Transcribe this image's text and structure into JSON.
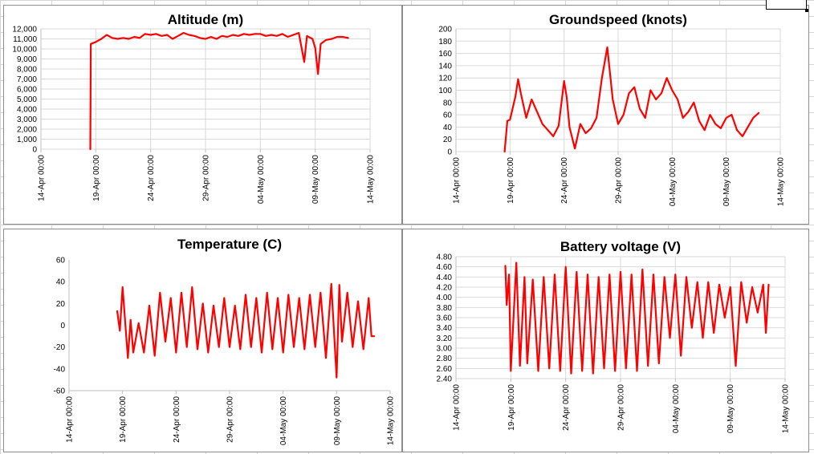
{
  "colors": {
    "series": "#ff0000",
    "grid": "#d9d9d9",
    "axis": "#bfbfbf",
    "background_grid": "#d4d4d4"
  },
  "chart_data": [
    {
      "type": "line",
      "title": "Altitude (m)",
      "xlabel": "",
      "ylabel": "",
      "grid": true,
      "ylim": [
        0,
        12000
      ],
      "yticks": [
        "0",
        "1,000",
        "2,000",
        "3,000",
        "4,000",
        "5,000",
        "6,000",
        "7,000",
        "8,000",
        "9,000",
        "10,000",
        "11,000",
        "12,000"
      ],
      "xlim": [
        "2023-04-14",
        "2023-05-14"
      ],
      "xticks": [
        "14-Apr 00:00",
        "19-Apr 00:00",
        "24-Apr 00:00",
        "29-Apr 00:00",
        "04-May 00:00",
        "09-May 00:00",
        "14-May 00:00"
      ],
      "series": [
        {
          "x": [
            "2023-04-18 12:00",
            "2023-04-18 13:00",
            "2023-04-19 00:00",
            "2023-04-19 12:00",
            "2023-04-20 00:00",
            "2023-04-20 12:00",
            "2023-04-21 00:00",
            "2023-04-21 12:00",
            "2023-04-22 00:00",
            "2023-04-22 12:00",
            "2023-04-23 00:00",
            "2023-04-23 12:00",
            "2023-04-24 00:00",
            "2023-04-24 12:00",
            "2023-04-25 00:00",
            "2023-04-25 12:00",
            "2023-04-26 00:00",
            "2023-04-26 12:00",
            "2023-04-27 00:00",
            "2023-04-27 12:00",
            "2023-04-28 00:00",
            "2023-04-28 12:00",
            "2023-04-29 00:00",
            "2023-04-29 12:00",
            "2023-04-30 00:00",
            "2023-04-30 12:00",
            "2023-05-01 00:00",
            "2023-05-01 12:00",
            "2023-05-02 00:00",
            "2023-05-02 12:00",
            "2023-05-03 00:00",
            "2023-05-03 12:00",
            "2023-05-04 00:00",
            "2023-05-04 12:00",
            "2023-05-05 00:00",
            "2023-05-05 12:00",
            "2023-05-06 00:00",
            "2023-05-06 12:00",
            "2023-05-07 00:00",
            "2023-05-07 12:00",
            "2023-05-08 00:00",
            "2023-05-08 06:00",
            "2023-05-08 18:00",
            "2023-05-09 00:00",
            "2023-05-09 06:00",
            "2023-05-09 12:00",
            "2023-05-10 00:00",
            "2023-05-10 12:00",
            "2023-05-11 00:00",
            "2023-05-11 12:00",
            "2023-05-12 00:00"
          ],
          "y": [
            0,
            10500,
            10700,
            11000,
            11400,
            11100,
            11000,
            11100,
            11000,
            11200,
            11100,
            11500,
            11400,
            11500,
            11300,
            11400,
            11000,
            11300,
            11600,
            11400,
            11300,
            11100,
            11000,
            11200,
            11000,
            11300,
            11200,
            11400,
            11300,
            11500,
            11400,
            11500,
            11500,
            11300,
            11400,
            11300,
            11500,
            11200,
            11400,
            11600,
            8700,
            11300,
            11000,
            10100,
            7500,
            10500,
            10900,
            11000,
            11200,
            11200,
            11100
          ]
        }
      ]
    },
    {
      "type": "line",
      "title": "Groundspeed (knots)",
      "xlabel": "",
      "ylabel": "",
      "grid": true,
      "ylim": [
        0,
        200
      ],
      "yticks": [
        "0",
        "20",
        "40",
        "60",
        "80",
        "100",
        "120",
        "140",
        "160",
        "180",
        "200"
      ],
      "xlim": [
        "2023-04-14",
        "2023-05-14"
      ],
      "xticks": [
        "14-Apr 00:00",
        "19-Apr 00:00",
        "24-Apr 00:00",
        "29-Apr 00:00",
        "04-May 00:00",
        "09-May 00:00",
        "14-May 00:00"
      ],
      "series": [
        {
          "x": [
            "2023-04-18 12:00",
            "2023-04-18 18:00",
            "2023-04-19 00:00",
            "2023-04-19 12:00",
            "2023-04-19 18:00",
            "2023-04-20 00:00",
            "2023-04-20 12:00",
            "2023-04-21 00:00",
            "2023-04-21 12:00",
            "2023-04-22 00:00",
            "2023-04-22 12:00",
            "2023-04-23 00:00",
            "2023-04-23 12:00",
            "2023-04-24 00:00",
            "2023-04-24 06:00",
            "2023-04-24 12:00",
            "2023-04-25 00:00",
            "2023-04-25 12:00",
            "2023-04-26 00:00",
            "2023-04-26 12:00",
            "2023-04-27 00:00",
            "2023-04-27 12:00",
            "2023-04-28 00:00",
            "2023-04-28 12:00",
            "2023-04-29 00:00",
            "2023-04-29 12:00",
            "2023-04-30 00:00",
            "2023-04-30 12:00",
            "2023-05-01 00:00",
            "2023-05-01 12:00",
            "2023-05-02 00:00",
            "2023-05-02 12:00",
            "2023-05-03 00:00",
            "2023-05-03 12:00",
            "2023-05-04 00:00",
            "2023-05-04 12:00",
            "2023-05-05 00:00",
            "2023-05-05 12:00",
            "2023-05-06 00:00",
            "2023-05-06 12:00",
            "2023-05-07 00:00",
            "2023-05-07 12:00",
            "2023-05-08 00:00",
            "2023-05-08 12:00",
            "2023-05-09 00:00",
            "2023-05-09 12:00",
            "2023-05-10 00:00",
            "2023-05-10 12:00",
            "2023-05-11 00:00",
            "2023-05-11 12:00",
            "2023-05-12 00:00"
          ],
          "y": [
            0,
            50,
            52,
            90,
            118,
            95,
            55,
            85,
            65,
            45,
            35,
            25,
            42,
            115,
            88,
            40,
            5,
            45,
            30,
            38,
            55,
            120,
            170,
            85,
            45,
            60,
            95,
            105,
            70,
            55,
            100,
            85,
            95,
            120,
            100,
            85,
            55,
            65,
            80,
            50,
            35,
            60,
            45,
            38,
            55,
            60,
            35,
            25,
            40,
            55,
            63
          ]
        }
      ]
    },
    {
      "type": "line",
      "title": "Temperature (C)",
      "xlabel": "",
      "ylabel": "",
      "grid": false,
      "ylim": [
        -60,
        60
      ],
      "yticks": [
        "-60",
        "-40",
        "-20",
        "0",
        "20",
        "40",
        "60"
      ],
      "xlim": [
        "2023-04-14",
        "2023-05-14"
      ],
      "xticks": [
        "14-Apr 00:00",
        "19-Apr 00:00",
        "24-Apr 00:00",
        "29-Apr 00:00",
        "04-May 00:00",
        "09-May 00:00",
        "14-May 00:00"
      ],
      "series": [
        {
          "x": [
            "2023-04-18 12:00",
            "2023-04-18 18:00",
            "2023-04-19 00:00",
            "2023-04-19 12:00",
            "2023-04-19 18:00",
            "2023-04-20 00:00",
            "2023-04-20 12:00",
            "2023-04-21 00:00",
            "2023-04-21 12:00",
            "2023-04-22 00:00",
            "2023-04-22 12:00",
            "2023-04-23 00:00",
            "2023-04-23 12:00",
            "2023-04-24 00:00",
            "2023-04-24 12:00",
            "2023-04-25 00:00",
            "2023-04-25 12:00",
            "2023-04-26 00:00",
            "2023-04-26 12:00",
            "2023-04-27 00:00",
            "2023-04-27 12:00",
            "2023-04-28 00:00",
            "2023-04-28 12:00",
            "2023-04-29 00:00",
            "2023-04-29 12:00",
            "2023-04-30 00:00",
            "2023-04-30 12:00",
            "2023-05-01 00:00",
            "2023-05-01 12:00",
            "2023-05-02 00:00",
            "2023-05-02 12:00",
            "2023-05-03 00:00",
            "2023-05-03 12:00",
            "2023-05-04 00:00",
            "2023-05-04 12:00",
            "2023-05-05 00:00",
            "2023-05-05 12:00",
            "2023-05-06 00:00",
            "2023-05-06 12:00",
            "2023-05-07 00:00",
            "2023-05-07 12:00",
            "2023-05-08 00:00",
            "2023-05-08 12:00",
            "2023-05-09 00:00",
            "2023-05-09 06:00",
            "2023-05-09 12:00",
            "2023-05-10 00:00",
            "2023-05-10 12:00",
            "2023-05-11 00:00",
            "2023-05-11 12:00",
            "2023-05-12 00:00",
            "2023-05-12 06:00",
            "2023-05-12 12:00"
          ],
          "y": [
            13,
            -5,
            35,
            -30,
            5,
            -25,
            2,
            -25,
            18,
            -28,
            30,
            -15,
            25,
            -25,
            30,
            -20,
            35,
            -22,
            20,
            -25,
            18,
            -20,
            25,
            -20,
            18,
            -22,
            28,
            -20,
            25,
            -25,
            30,
            -22,
            25,
            -25,
            28,
            -20,
            25,
            -22,
            28,
            -20,
            30,
            -30,
            38,
            -48,
            37,
            -15,
            30,
            -20,
            22,
            -22,
            25,
            -10,
            -10
          ]
        }
      ]
    },
    {
      "type": "line",
      "title": "Battery voltage (V)",
      "xlabel": "",
      "ylabel": "",
      "grid": true,
      "ylim": [
        2.4,
        4.8
      ],
      "yticks": [
        "2.40",
        "2.60",
        "2.80",
        "3.00",
        "3.20",
        "3.40",
        "3.60",
        "3.80",
        "4.00",
        "4.20",
        "4.40",
        "4.60",
        "4.80"
      ],
      "xlim": [
        "2023-04-14",
        "2023-05-14"
      ],
      "xticks": [
        "14-Apr 00:00",
        "19-Apr 00:00",
        "24-Apr 00:00",
        "29-Apr 00:00",
        "04-May 00:00",
        "09-May 00:00",
        "14-May 00:00"
      ],
      "series": [
        {
          "x": [
            "2023-04-18 12:00",
            "2023-04-18 15:00",
            "2023-04-18 20:00",
            "2023-04-19 00:00",
            "2023-04-19 12:00",
            "2023-04-19 20:00",
            "2023-04-20 06:00",
            "2023-04-20 12:00",
            "2023-04-21 00:00",
            "2023-04-21 12:00",
            "2023-04-22 00:00",
            "2023-04-22 12:00",
            "2023-04-23 00:00",
            "2023-04-23 12:00",
            "2023-04-24 00:00",
            "2023-04-24 12:00",
            "2023-04-25 00:00",
            "2023-04-25 12:00",
            "2023-04-26 00:00",
            "2023-04-26 12:00",
            "2023-04-27 00:00",
            "2023-04-27 12:00",
            "2023-04-28 00:00",
            "2023-04-28 12:00",
            "2023-04-29 00:00",
            "2023-04-29 12:00",
            "2023-04-30 00:00",
            "2023-04-30 12:00",
            "2023-05-01 00:00",
            "2023-05-01 12:00",
            "2023-05-02 00:00",
            "2023-05-02 12:00",
            "2023-05-03 00:00",
            "2023-05-03 12:00",
            "2023-05-04 00:00",
            "2023-05-04 12:00",
            "2023-05-05 00:00",
            "2023-05-05 12:00",
            "2023-05-06 00:00",
            "2023-05-06 12:00",
            "2023-05-07 00:00",
            "2023-05-07 12:00",
            "2023-05-08 00:00",
            "2023-05-08 12:00",
            "2023-05-09 00:00",
            "2023-05-09 12:00",
            "2023-05-10 00:00",
            "2023-05-10 12:00",
            "2023-05-11 00:00",
            "2023-05-11 12:00",
            "2023-05-12 00:00",
            "2023-05-12 06:00",
            "2023-05-12 12:00"
          ],
          "y": [
            4.62,
            3.85,
            4.45,
            2.55,
            4.68,
            2.65,
            4.4,
            2.7,
            4.35,
            2.55,
            4.4,
            2.6,
            4.45,
            2.55,
            4.6,
            2.5,
            4.5,
            2.55,
            4.45,
            2.5,
            4.4,
            2.6,
            4.45,
            2.55,
            4.5,
            2.6,
            4.45,
            2.55,
            4.55,
            2.65,
            4.45,
            2.7,
            4.4,
            3.2,
            4.45,
            2.85,
            4.4,
            3.4,
            4.3,
            3.2,
            4.3,
            3.3,
            4.25,
            3.6,
            4.2,
            2.65,
            4.3,
            3.5,
            4.2,
            3.7,
            4.25,
            3.3,
            4.25
          ]
        }
      ]
    }
  ]
}
